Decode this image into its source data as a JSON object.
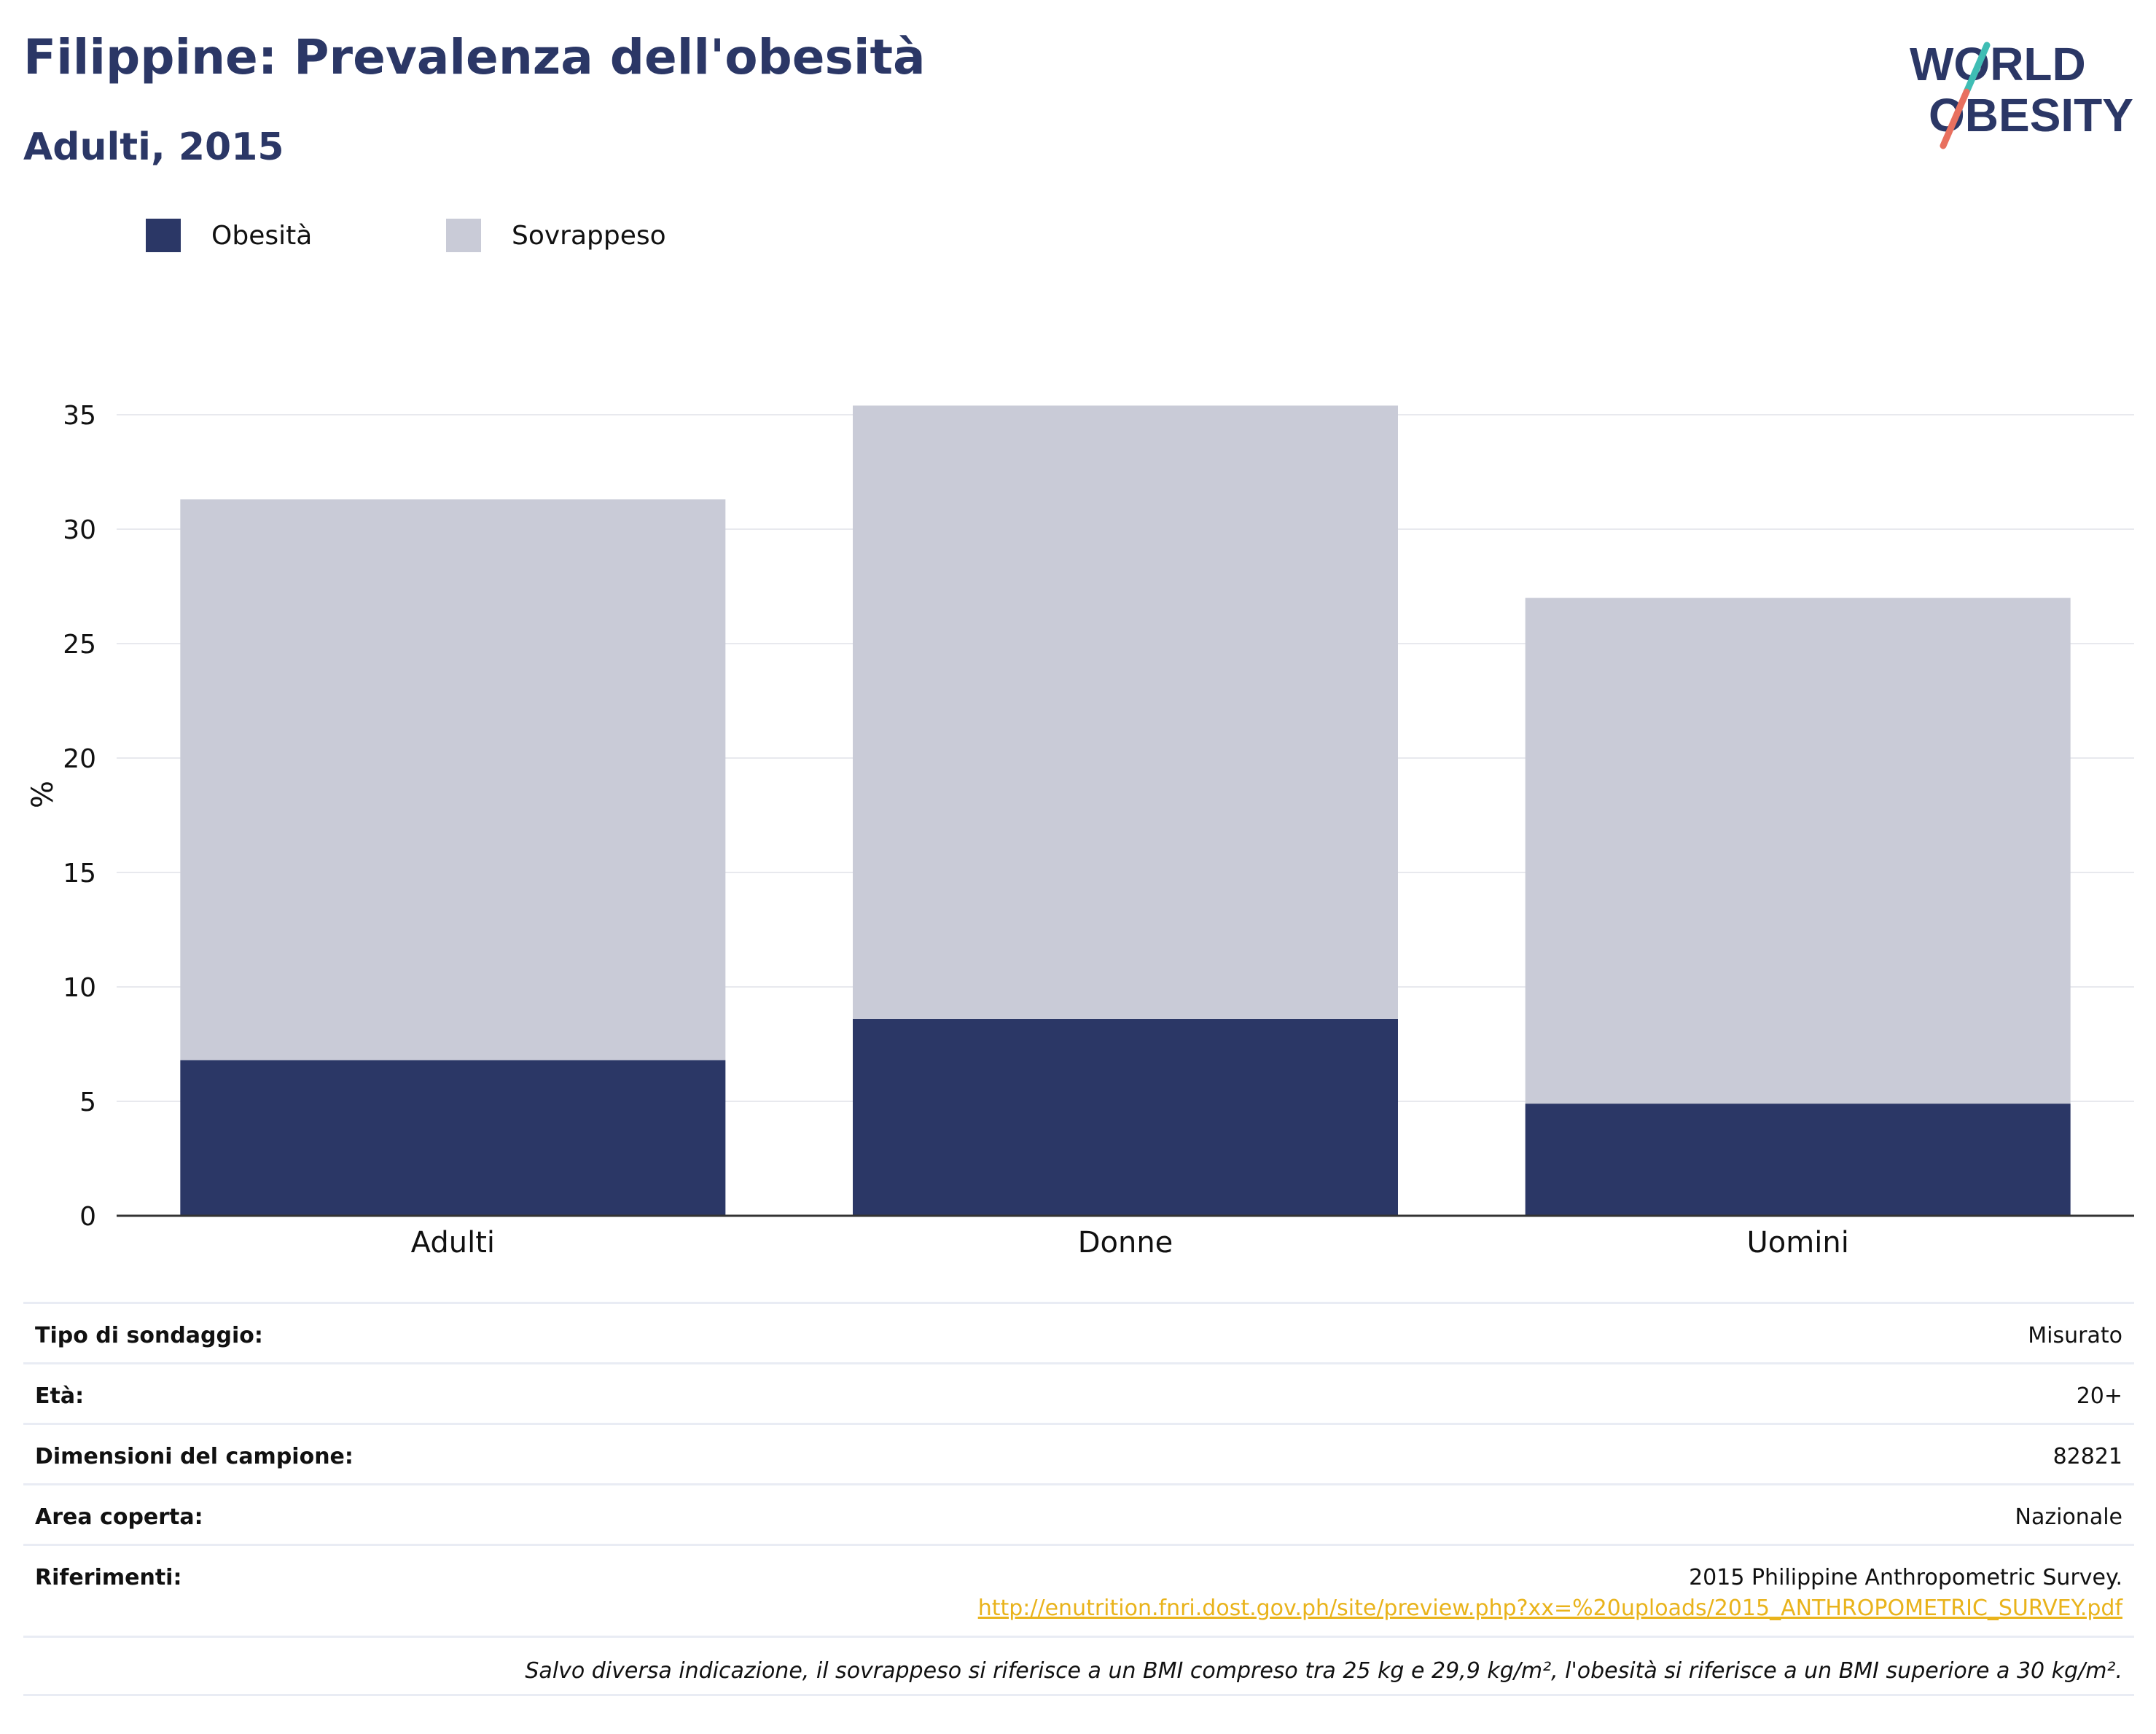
{
  "header": {
    "title": "Filippine: Prevalenza dell'obesità",
    "subtitle": "Adulti, 2015"
  },
  "logo": {
    "line1": "WORLD",
    "line2": "OBESITY"
  },
  "legend": {
    "items": [
      {
        "label": "Obesità",
        "color": "#2b3766"
      },
      {
        "label": "Sovrappeso",
        "color": "#c9cbd7"
      }
    ]
  },
  "chart_data": {
    "type": "bar",
    "stacked": true,
    "title": "Filippine: Prevalenza dell'obesità",
    "subtitle": "Adulti, 2015",
    "categories": [
      "Adulti",
      "Donne",
      "Uomini"
    ],
    "series": [
      {
        "name": "Obesità",
        "values": [
          6.8,
          8.6,
          4.9
        ],
        "color": "#2b3766"
      },
      {
        "name": "Sovrappeso",
        "values": [
          24.5,
          26.8,
          22.1
        ],
        "color": "#c9cbd7"
      }
    ],
    "ylabel": "%",
    "ylim": [
      0,
      37
    ],
    "yticks": [
      0,
      5,
      10,
      15,
      20,
      25,
      30,
      35
    ],
    "grid": true,
    "legend_position": "top-left"
  },
  "meta": {
    "rows": [
      {
        "key": "Tipo di sondaggio:",
        "value": "Misurato"
      },
      {
        "key": "Età:",
        "value": "20+"
      },
      {
        "key": "Dimensioni del campione:",
        "value": "82821"
      },
      {
        "key": "Area coperta:",
        "value": "Nazionale"
      }
    ],
    "references": {
      "key": "Riferimenti:",
      "value": "2015 Philippine Anthropometric Survey.",
      "link": "http://enutrition.fnri.dost.gov.ph/site/preview.php?xx=%20uploads/2015_ANTHROPOMETRIC_SURVEY.pdf"
    },
    "note": "Salvo diversa indicazione, il sovrappeso si riferisce a un BMI compreso tra 25 kg e 29,9 kg/m², l'obesità si riferisce a un BMI superiore a 30 kg/m²."
  },
  "colors": {
    "brand_navy": "#2b3766",
    "overweight_grey": "#c9cbd7",
    "link_yellow": "#e9b31b",
    "logo_teal": "#3fbdb4",
    "logo_coral": "#e8705f"
  }
}
